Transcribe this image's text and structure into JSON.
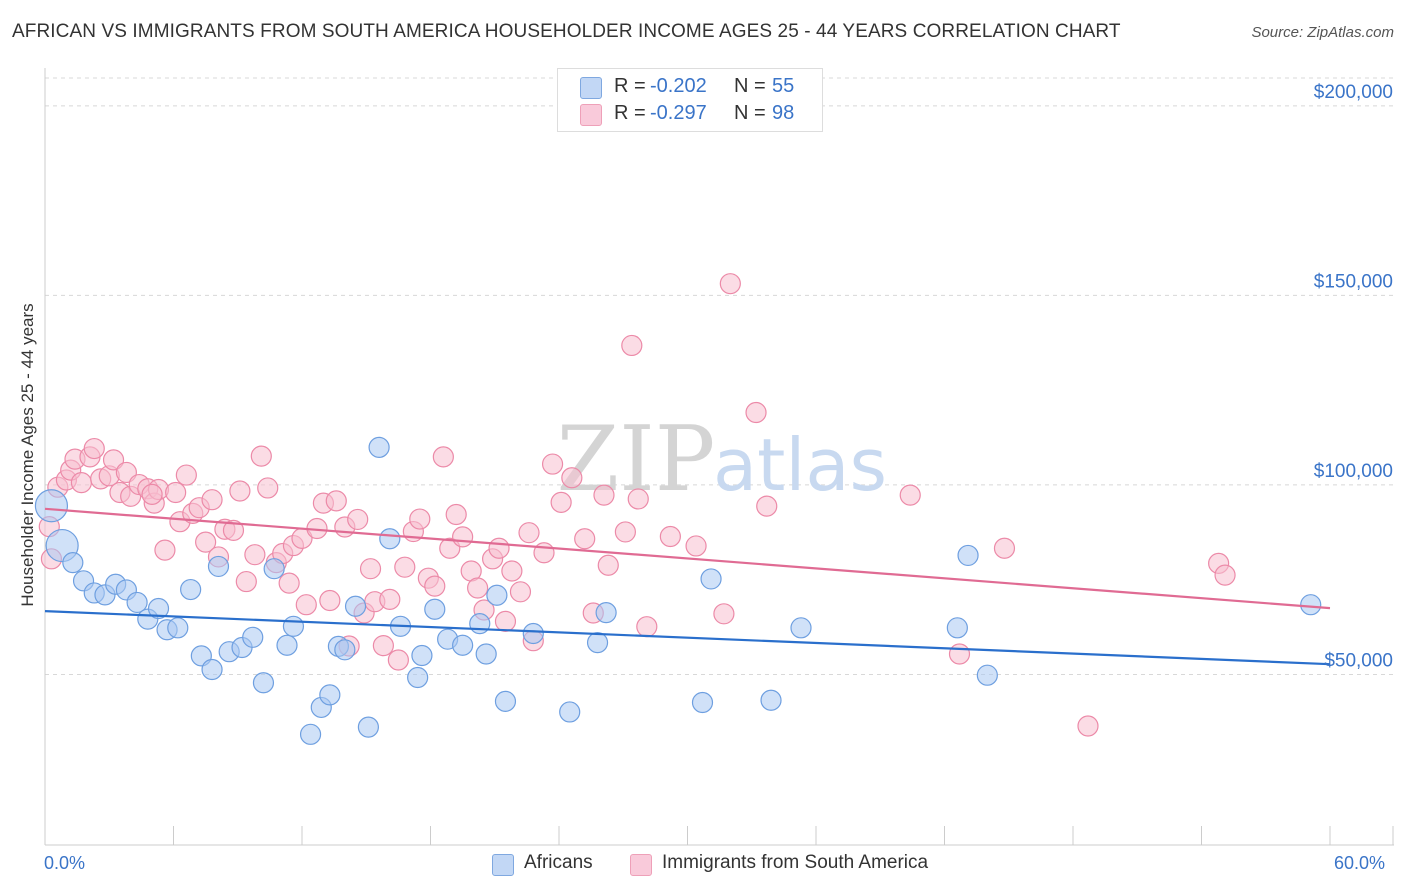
{
  "title": "AFRICAN VS IMMIGRANTS FROM SOUTH AMERICA HOUSEHOLDER INCOME AGES 25 - 44 YEARS CORRELATION CHART",
  "source": "Source: ZipAtlas.com",
  "legend": {
    "r_label": "R = ",
    "n_label": "N = ",
    "rows": [
      {
        "r": "-0.202",
        "n": "55"
      },
      {
        "r": "-0.297",
        "n": "98"
      }
    ]
  },
  "watermark": {
    "zip": "ZIP",
    "atlas": "atlas"
  },
  "colors": {
    "blue_fill": "#a9c8f2",
    "blue_stroke": "#6e9fe0",
    "blue_line": "#2a6fcc",
    "pink_fill": "#f7c0d0",
    "pink_stroke": "#ec8aa8",
    "pink_line": "#e06b93",
    "axis_text": "#3a74c8",
    "grid": "#d8d8d8"
  },
  "chart_data": {
    "type": "scatter",
    "title": "AFRICAN VS IMMIGRANTS FROM SOUTH AMERICA HOUSEHOLDER INCOME AGES 25 - 44 YEARS CORRELATION CHART",
    "xlabel": "",
    "ylabel": "Householder Income Ages 25 - 44 years",
    "xlim": [
      0,
      60
    ],
    "ylim": [
      5000,
      210000
    ],
    "x_tick_labels": {
      "min": "0.0%",
      "max": "60.0%"
    },
    "y_ticks": [
      {
        "value": 50000,
        "label": "$50,000"
      },
      {
        "value": 100000,
        "label": "$100,000"
      },
      {
        "value": 150000,
        "label": "$150,000"
      },
      {
        "value": 200000,
        "label": "$200,000"
      }
    ],
    "series": [
      {
        "name": "Africans",
        "r": -0.202,
        "n": 55,
        "trend": {
          "x": [
            0,
            60
          ],
          "y": [
            66700,
            52700
          ]
        },
        "points": [
          [
            0.3,
            94500
          ],
          [
            0.8,
            84000
          ],
          [
            1.3,
            79500
          ],
          [
            1.8,
            74700
          ],
          [
            2.3,
            71500
          ],
          [
            2.8,
            71000
          ],
          [
            3.3,
            73800
          ],
          [
            3.8,
            72300
          ],
          [
            4.3,
            69000
          ],
          [
            4.8,
            64600
          ],
          [
            5.3,
            67400
          ],
          [
            5.7,
            61800
          ],
          [
            6.2,
            62300
          ],
          [
            6.8,
            72400
          ],
          [
            7.3,
            54900
          ],
          [
            7.8,
            51300
          ],
          [
            8.1,
            78500
          ],
          [
            8.6,
            56000
          ],
          [
            9.2,
            57100
          ],
          [
            9.7,
            59800
          ],
          [
            10.2,
            47800
          ],
          [
            10.7,
            77900
          ],
          [
            11.3,
            57700
          ],
          [
            11.6,
            62700
          ],
          [
            12.4,
            34200
          ],
          [
            12.9,
            41300
          ],
          [
            13.3,
            44600
          ],
          [
            13.7,
            57400
          ],
          [
            14.0,
            56500
          ],
          [
            14.5,
            68000
          ],
          [
            15.1,
            36100
          ],
          [
            15.6,
            109900
          ],
          [
            16.1,
            85800
          ],
          [
            16.6,
            62700
          ],
          [
            17.4,
            49200
          ],
          [
            17.6,
            55000
          ],
          [
            18.2,
            67200
          ],
          [
            18.8,
            59300
          ],
          [
            19.5,
            57700
          ],
          [
            20.3,
            63400
          ],
          [
            20.6,
            55400
          ],
          [
            21.1,
            70900
          ],
          [
            21.5,
            42900
          ],
          [
            22.8,
            60800
          ],
          [
            24.5,
            40100
          ],
          [
            25.8,
            58400
          ],
          [
            26.2,
            66300
          ],
          [
            30.7,
            42600
          ],
          [
            31.1,
            75200
          ],
          [
            33.9,
            43200
          ],
          [
            35.3,
            62300
          ],
          [
            42.6,
            62300
          ],
          [
            43.1,
            81400
          ],
          [
            44.0,
            49800
          ],
          [
            59.1,
            68400
          ]
        ],
        "marker_sizes": [
          "large",
          "large",
          "medium",
          "medium",
          "medium",
          "medium",
          "medium",
          "medium",
          "medium",
          "medium",
          "medium",
          "medium",
          "medium",
          "medium",
          "medium",
          "medium",
          "medium",
          "medium",
          "medium",
          "medium",
          "medium",
          "medium",
          "medium",
          "medium",
          "medium",
          "medium",
          "medium",
          "medium",
          "medium",
          "medium",
          "medium",
          "medium",
          "medium",
          "medium",
          "medium",
          "medium",
          "medium",
          "medium",
          "medium",
          "medium",
          "medium",
          "medium",
          "medium",
          "medium",
          "medium",
          "medium",
          "medium",
          "medium",
          "medium",
          "medium",
          "medium",
          "medium",
          "medium",
          "medium",
          "medium"
        ]
      },
      {
        "name": "Immigrants from South America",
        "r": -0.297,
        "n": 98,
        "trend": {
          "x": [
            0,
            60
          ],
          "y": [
            93700,
            67500
          ]
        },
        "points": [
          [
            0.2,
            89000
          ],
          [
            0.3,
            80500
          ],
          [
            0.6,
            99400
          ],
          [
            1.0,
            101300
          ],
          [
            1.2,
            103900
          ],
          [
            1.4,
            106800
          ],
          [
            1.7,
            100600
          ],
          [
            2.1,
            107400
          ],
          [
            2.3,
            109600
          ],
          [
            2.6,
            101600
          ],
          [
            3.0,
            102400
          ],
          [
            3.2,
            106600
          ],
          [
            3.5,
            98000
          ],
          [
            3.8,
            103300
          ],
          [
            4.0,
            97000
          ],
          [
            4.4,
            100100
          ],
          [
            4.8,
            99000
          ],
          [
            5.1,
            95200
          ],
          [
            5.3,
            98800
          ],
          [
            5.6,
            82800
          ],
          [
            6.1,
            98000
          ],
          [
            6.3,
            90300
          ],
          [
            6.6,
            102600
          ],
          [
            6.9,
            92500
          ],
          [
            7.2,
            94000
          ],
          [
            7.5,
            84900
          ],
          [
            7.8,
            96100
          ],
          [
            8.1,
            81000
          ],
          [
            8.4,
            88300
          ],
          [
            8.8,
            88000
          ],
          [
            9.1,
            98400
          ],
          [
            9.4,
            74500
          ],
          [
            9.8,
            81600
          ],
          [
            10.1,
            107600
          ],
          [
            10.4,
            99200
          ],
          [
            10.8,
            79500
          ],
          [
            11.1,
            81900
          ],
          [
            11.4,
            74100
          ],
          [
            11.6,
            84000
          ],
          [
            12.0,
            85900
          ],
          [
            12.2,
            68400
          ],
          [
            12.7,
            88500
          ],
          [
            13.0,
            95200
          ],
          [
            13.3,
            69500
          ],
          [
            13.6,
            95800
          ],
          [
            14.0,
            88900
          ],
          [
            14.2,
            57500
          ],
          [
            14.6,
            90900
          ],
          [
            14.9,
            66200
          ],
          [
            15.2,
            77900
          ],
          [
            15.4,
            69200
          ],
          [
            15.8,
            57600
          ],
          [
            16.1,
            69800
          ],
          [
            16.5,
            53800
          ],
          [
            16.8,
            78300
          ],
          [
            17.2,
            87700
          ],
          [
            17.5,
            91000
          ],
          [
            17.9,
            75400
          ],
          [
            18.2,
            73300
          ],
          [
            18.6,
            107400
          ],
          [
            18.9,
            83300
          ],
          [
            19.2,
            92200
          ],
          [
            19.5,
            86300
          ],
          [
            19.9,
            77300
          ],
          [
            20.2,
            72800
          ],
          [
            20.5,
            67000
          ],
          [
            20.9,
            80500
          ],
          [
            21.2,
            83300
          ],
          [
            21.5,
            64000
          ],
          [
            21.8,
            77300
          ],
          [
            22.2,
            71800
          ],
          [
            22.6,
            87400
          ],
          [
            22.8,
            58900
          ],
          [
            23.3,
            82100
          ],
          [
            23.7,
            105500
          ],
          [
            24.1,
            95400
          ],
          [
            24.6,
            101900
          ],
          [
            25.2,
            85800
          ],
          [
            25.6,
            66200
          ],
          [
            26.1,
            97300
          ],
          [
            26.3,
            78800
          ],
          [
            27.1,
            87600
          ],
          [
            27.4,
            136800
          ],
          [
            27.7,
            96300
          ],
          [
            28.1,
            62600
          ],
          [
            29.2,
            86400
          ],
          [
            30.4,
            83900
          ],
          [
            31.7,
            66000
          ],
          [
            32.0,
            153100
          ],
          [
            33.2,
            119100
          ],
          [
            33.7,
            94400
          ],
          [
            40.4,
            97300
          ],
          [
            42.7,
            55400
          ],
          [
            44.8,
            83300
          ],
          [
            48.7,
            36400
          ],
          [
            54.8,
            79300
          ],
          [
            55.1,
            76200
          ],
          [
            5.0,
            97500
          ]
        ],
        "marker_sizes": "medium"
      }
    ]
  }
}
